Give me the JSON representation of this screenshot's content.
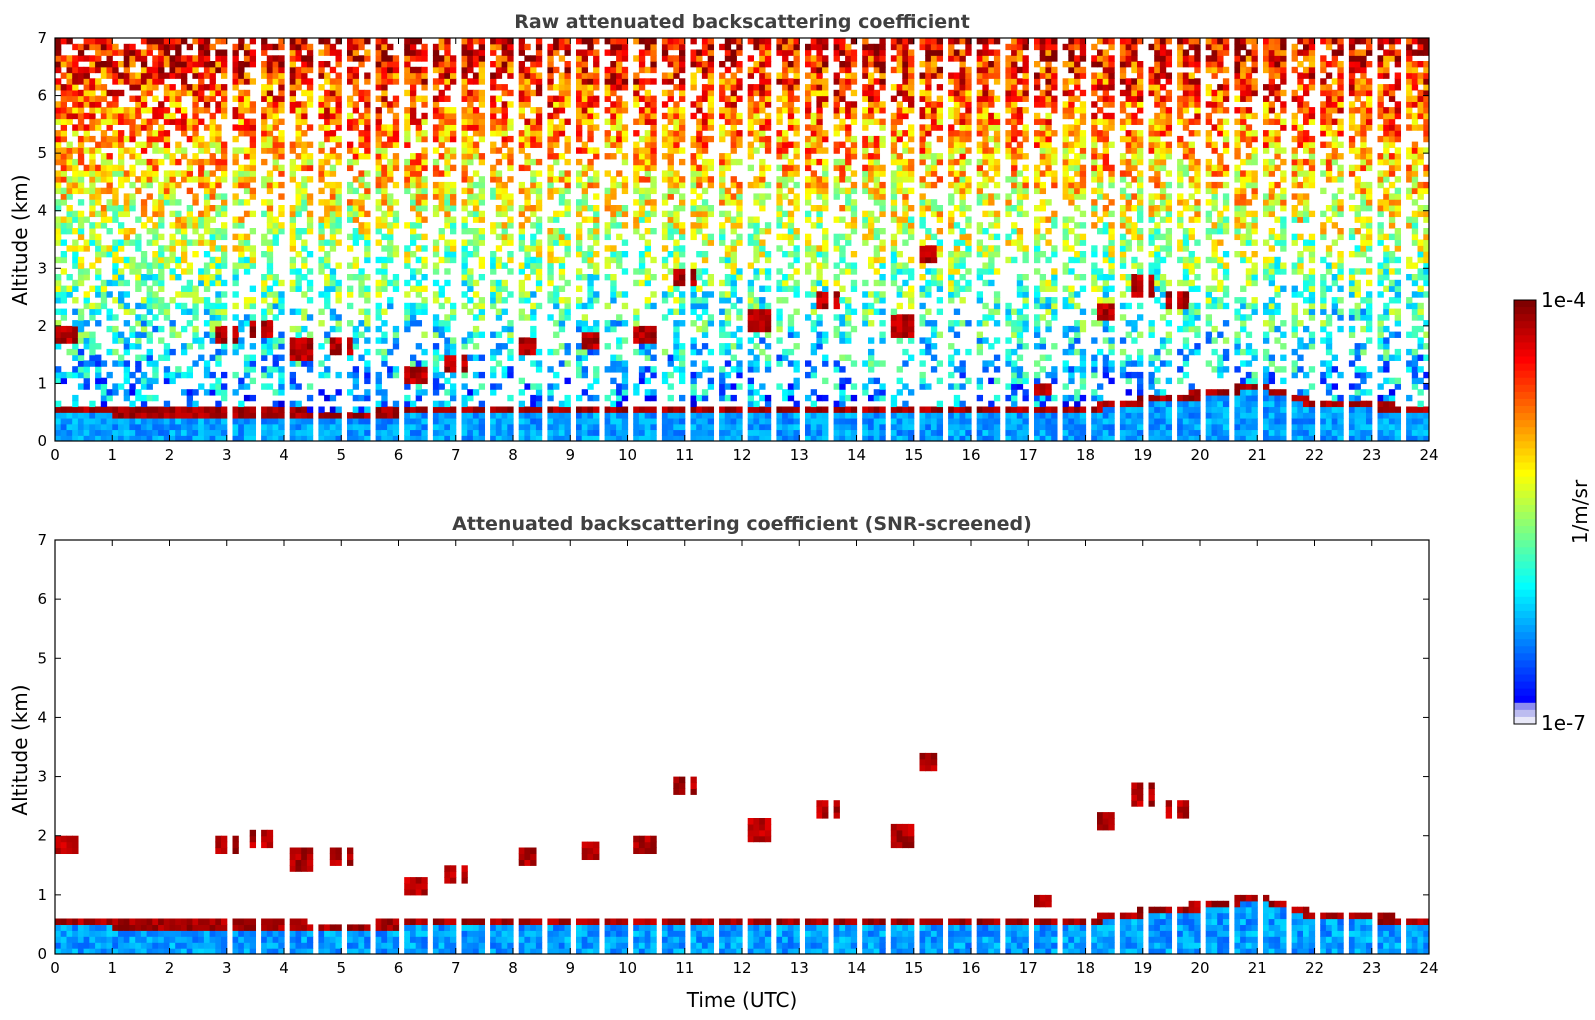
{
  "chart_data": [
    {
      "type": "heatmap",
      "title": "Raw attenuated backscattering coefficient",
      "xlabel": "",
      "ylabel": "Altitude (km)",
      "xlim": [
        0,
        24
      ],
      "ylim": [
        0,
        7
      ],
      "xticks": [
        0,
        1,
        2,
        3,
        4,
        5,
        6,
        7,
        8,
        9,
        10,
        11,
        12,
        13,
        14,
        15,
        16,
        17,
        18,
        19,
        20,
        21,
        22,
        23,
        24
      ],
      "yticks": [
        0,
        1,
        2,
        3,
        4,
        5,
        6,
        7
      ],
      "data_gaps": "vertical white gaps roughly every 0.5 h after 3 UTC",
      "features": {
        "boundary_layer_top_km": [
          [
            0,
            0.5
          ],
          [
            1,
            0.45
          ],
          [
            2,
            0.45
          ],
          [
            3,
            0.45
          ],
          [
            4,
            0.45
          ],
          [
            5,
            0.4
          ],
          [
            6,
            0.45
          ],
          [
            7,
            0.5
          ],
          [
            8,
            0.5
          ],
          [
            9,
            0.45
          ],
          [
            10,
            0.5
          ],
          [
            11,
            0.5
          ],
          [
            12,
            0.5
          ],
          [
            13,
            0.5
          ],
          [
            14,
            0.5
          ],
          [
            15,
            0.5
          ],
          [
            16,
            0.5
          ],
          [
            17,
            0.5
          ],
          [
            18,
            0.5
          ],
          [
            19,
            0.65
          ],
          [
            20,
            0.75
          ],
          [
            21,
            0.9
          ],
          [
            22,
            0.6
          ],
          [
            23,
            0.55
          ],
          [
            24,
            0.5
          ]
        ],
        "cloud_layers_km": [
          [
            0.2,
            1.9
          ],
          [
            3.0,
            1.85
          ],
          [
            3.6,
            1.95
          ],
          [
            4.3,
            1.6
          ],
          [
            5.0,
            1.65
          ],
          [
            6.3,
            1.1
          ],
          [
            7.0,
            1.4
          ],
          [
            8.2,
            1.7
          ],
          [
            9.4,
            1.8
          ],
          [
            10.3,
            1.9
          ],
          [
            11.0,
            2.9
          ],
          [
            12.3,
            2.1
          ],
          [
            13.5,
            2.5
          ],
          [
            14.8,
            2.0
          ],
          [
            15.2,
            3.3
          ],
          [
            17.2,
            0.9
          ],
          [
            18.4,
            2.3
          ],
          [
            19.0,
            2.7
          ],
          [
            19.6,
            2.5
          ],
          [
            20.1,
            0.75
          ],
          [
            21.0,
            0.9
          ]
        ]
      }
    },
    {
      "type": "heatmap",
      "title": "Attenuated backscattering coefficient (SNR-screened)",
      "xlabel": "Time (UTC)",
      "ylabel": "Altitude (km)",
      "xlim": [
        0,
        24
      ],
      "ylim": [
        0,
        7
      ],
      "xticks": [
        0,
        1,
        2,
        3,
        4,
        5,
        6,
        7,
        8,
        9,
        10,
        11,
        12,
        13,
        14,
        15,
        16,
        17,
        18,
        19,
        20,
        21,
        22,
        23,
        24
      ],
      "yticks": [
        0,
        1,
        2,
        3,
        4,
        5,
        6,
        7
      ]
    }
  ],
  "colorbar": {
    "label": "1/m/sr",
    "max_label": "1e-4",
    "min_label": "1e-7",
    "colormap": "jet",
    "low_colors": [
      "#e8e8f8",
      "#bcbcf0",
      "#8c8cf0"
    ]
  }
}
